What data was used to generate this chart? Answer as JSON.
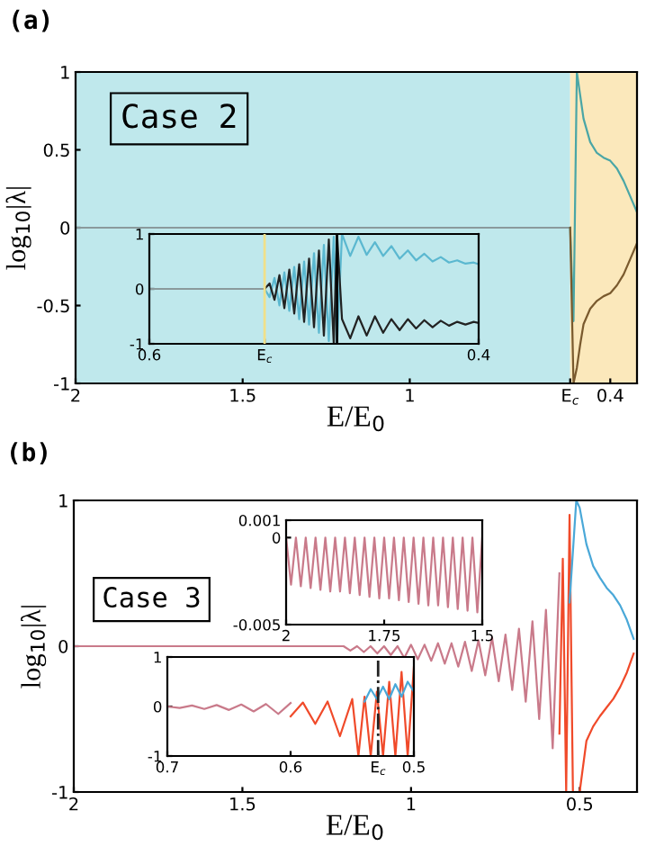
{
  "chart_data": [
    {
      "type": "line",
      "title": "(a)",
      "xlabel": "E/E$_{0}$",
      "ylabel": "log$_{10}$|λ|",
      "annotations": [
        "Case 2"
      ],
      "xlim": [
        2,
        0.32
      ],
      "ylim": [
        -1,
        1
      ],
      "xticks": [
        2,
        1.5,
        1,
        {
          "value": 0.52,
          "label": "E$_{c}$"
        },
        0.4
      ],
      "yticks": [
        -1,
        -0.5,
        0,
        0.5,
        1
      ],
      "bands": [
        {
          "axis": "x",
          "from": 2,
          "to": 0.52,
          "color": "#bfe8ec"
        },
        {
          "axis": "x",
          "from": 0.52,
          "to": 0.32,
          "color": "#fbe8bb"
        }
      ],
      "series": [
        {
          "color": "#8a9a9c",
          "x": [
            2,
            0.52
          ],
          "values": [
            0,
            0
          ]
        },
        {
          "color": "#4aa6a6",
          "x": [
            0.52,
            0.51,
            0.5,
            0.49,
            0.48,
            0.46,
            0.44,
            0.42,
            0.4,
            0.38,
            0.36,
            0.34,
            0.32
          ],
          "values": [
            0,
            -0.6,
            1,
            0.85,
            0.7,
            0.55,
            0.48,
            0.45,
            0.43,
            0.38,
            0.3,
            0.2,
            0.1
          ]
        },
        {
          "color": "#7a5a2e",
          "x": [
            0.52,
            0.51,
            0.5,
            0.49,
            0.48,
            0.46,
            0.44,
            0.42,
            0.4,
            0.38,
            0.36,
            0.34,
            0.32
          ],
          "values": [
            0,
            -1,
            -0.9,
            -0.75,
            -0.62,
            -0.52,
            -0.47,
            -0.44,
            -0.42,
            -0.37,
            -0.3,
            -0.2,
            -0.1
          ]
        }
      ]
    },
    {
      "type": "line",
      "xlim": [
        0.6,
        0.4
      ],
      "ylim": [
        -1,
        1
      ],
      "xticks": [
        0.6,
        {
          "value": 0.53,
          "label": "E$_{c}$"
        },
        0.4
      ],
      "yticks": [
        -1,
        0,
        1
      ],
      "bands": [
        {
          "axis": "x",
          "from": 0.6,
          "to": 0.4,
          "color": "#bfe8ec"
        }
      ],
      "ref_lines": [
        {
          "axis": "x",
          "value": 0.53,
          "color": "#f0e08a"
        },
        {
          "axis": "x",
          "value": 0.486,
          "color": "#000000"
        }
      ],
      "series": [
        {
          "color": "#8a9a9c",
          "x": [
            0.6,
            0.53
          ],
          "values": [
            0,
            0
          ]
        },
        {
          "color": "#5bb8d0",
          "x": [
            0.53,
            0.527,
            0.524,
            0.521,
            0.518,
            0.515,
            0.512,
            0.509,
            0.506,
            0.503,
            0.5,
            0.497,
            0.494,
            0.491,
            0.488,
            0.486,
            0.483,
            0.478,
            0.473,
            0.468,
            0.463,
            0.458,
            0.453,
            0.448,
            0.443,
            0.438,
            0.433,
            0.428,
            0.423,
            0.418,
            0.413,
            0.408,
            0.403,
            0.4
          ],
          "values": [
            0,
            -0.15,
            0.2,
            -0.3,
            0.3,
            -0.4,
            0.4,
            -0.55,
            0.5,
            -0.65,
            0.65,
            -0.8,
            0.8,
            -0.95,
            0.95,
            -1,
            1,
            0.6,
            0.95,
            0.62,
            0.85,
            0.6,
            0.78,
            0.55,
            0.7,
            0.52,
            0.64,
            0.5,
            0.58,
            0.48,
            0.52,
            0.46,
            0.48,
            0.45
          ]
        },
        {
          "color": "#222222",
          "x": [
            0.53,
            0.527,
            0.524,
            0.521,
            0.518,
            0.515,
            0.512,
            0.509,
            0.506,
            0.503,
            0.5,
            0.497,
            0.494,
            0.491,
            0.488,
            0.486,
            0.483,
            0.478,
            0.473,
            0.468,
            0.463,
            0.458,
            0.453,
            0.448,
            0.443,
            0.438,
            0.433,
            0.428,
            0.423,
            0.418,
            0.413,
            0.408,
            0.403,
            0.4
          ],
          "values": [
            0,
            0.1,
            -0.2,
            0.25,
            -0.35,
            0.35,
            -0.45,
            0.45,
            -0.6,
            0.55,
            -0.7,
            0.7,
            -0.85,
            0.9,
            -1,
            1,
            -0.55,
            -0.9,
            -0.5,
            -0.85,
            -0.5,
            -0.8,
            -0.55,
            -0.75,
            -0.55,
            -0.72,
            -0.57,
            -0.7,
            -0.58,
            -0.67,
            -0.6,
            -0.65,
            -0.6,
            -0.62
          ]
        }
      ]
    },
    {
      "type": "line",
      "title": "(b)",
      "xlabel": "E/E$_{0}$",
      "ylabel": "log$_{10}$|λ|",
      "annotations": [
        "Case 3"
      ],
      "xlim": [
        2,
        0.33
      ],
      "ylim": [
        -1,
        1
      ],
      "xticks": [
        2,
        1.5,
        1,
        0.5
      ],
      "yticks": [
        -1,
        0,
        1
      ],
      "series": [
        {
          "color": "#c97a8a",
          "x": [
            2,
            1.3,
            1.2,
            1.18,
            1.16,
            1.14,
            1.12,
            1.1,
            1.08,
            1.06,
            1.04,
            1.02,
            1.0,
            0.98,
            0.96,
            0.94,
            0.92,
            0.9,
            0.88,
            0.86,
            0.84,
            0.82,
            0.8,
            0.78,
            0.76,
            0.74,
            0.72,
            0.7,
            0.68,
            0.66,
            0.64,
            0.62,
            0.6,
            0.58,
            0.56
          ],
          "values": [
            0,
            0,
            0,
            -0.03,
            0,
            -0.04,
            0,
            -0.05,
            0,
            -0.06,
            0,
            -0.08,
            0.01,
            -0.09,
            0.01,
            -0.1,
            0.02,
            -0.12,
            0.02,
            -0.14,
            0.03,
            -0.17,
            0.04,
            -0.2,
            0.06,
            -0.24,
            0.08,
            -0.3,
            0.12,
            -0.38,
            0.17,
            -0.5,
            0.25,
            -0.7,
            0.5
          ]
        },
        {
          "color": "#f04a2a",
          "x": [
            0.56,
            0.55,
            0.54,
            0.53,
            0.52,
            0.5,
            0.48,
            0.46,
            0.44,
            0.42,
            0.4,
            0.38,
            0.36,
            0.34
          ],
          "values": [
            -0.6,
            0.6,
            -1,
            0.9,
            -1,
            -1,
            -0.65,
            -0.55,
            -0.48,
            -0.42,
            -0.36,
            -0.28,
            -0.18,
            -0.05
          ]
        },
        {
          "color": "#4aa8d8",
          "x": [
            0.53,
            0.51,
            0.5,
            0.48,
            0.46,
            0.44,
            0.42,
            0.4,
            0.38,
            0.36,
            0.34
          ],
          "values": [
            0.3,
            1,
            0.95,
            0.7,
            0.55,
            0.47,
            0.4,
            0.35,
            0.28,
            0.18,
            0.05
          ]
        }
      ]
    },
    {
      "type": "line",
      "xlim": [
        2,
        1.5
      ],
      "ylim": [
        -0.005,
        0.001
      ],
      "xticks": [
        2,
        1.75,
        1.5
      ],
      "yticks": [
        -0.005,
        0,
        0.001
      ],
      "series": [
        {
          "color": "#c97a8a",
          "x": [
            2,
            1.9875,
            1.975,
            1.9625,
            1.95,
            1.9375,
            1.925,
            1.9125,
            1.9,
            1.8875,
            1.875,
            1.8625,
            1.85,
            1.8375,
            1.825,
            1.8125,
            1.8,
            1.7875,
            1.775,
            1.7625,
            1.75,
            1.7375,
            1.725,
            1.7125,
            1.7,
            1.6875,
            1.675,
            1.6625,
            1.65,
            1.6375,
            1.625,
            1.6125,
            1.6,
            1.5875,
            1.575,
            1.5625,
            1.55,
            1.5375,
            1.525,
            1.5125,
            1.5
          ],
          "values": [
            0,
            -0.0027,
            0,
            -0.0028,
            0,
            -0.0029,
            0,
            -0.003,
            0,
            -0.0031,
            0,
            -0.0031,
            0,
            -0.0032,
            0,
            -0.0033,
            0,
            -0.0034,
            0,
            -0.0035,
            0,
            -0.0035,
            0,
            -0.0036,
            0,
            -0.0037,
            0,
            -0.0038,
            0,
            -0.0039,
            0,
            -0.0039,
            0,
            -0.004,
            0,
            -0.0041,
            0,
            -0.0042,
            0,
            -0.0043,
            0
          ]
        }
      ]
    },
    {
      "type": "line",
      "xlim": [
        0.7,
        0.5
      ],
      "ylim": [
        -1,
        1
      ],
      "xticks": [
        0.7,
        0.6,
        {
          "value": 0.529,
          "label": "E$_{c}$"
        },
        0.5
      ],
      "yticks": [
        -1,
        0,
        1
      ],
      "ref_lines": [
        {
          "axis": "x",
          "value": 0.529,
          "color": "#222222",
          "line_style": "dashed"
        }
      ],
      "series": [
        {
          "color": "#c97a8a",
          "x": [
            0.7,
            0.69,
            0.68,
            0.67,
            0.66,
            0.65,
            0.64,
            0.63,
            0.62,
            0.61,
            0.6
          ],
          "values": [
            0,
            -0.03,
            0.02,
            -0.05,
            0.03,
            -0.07,
            0.04,
            -0.1,
            0.05,
            -0.15,
            0.07
          ]
        },
        {
          "color": "#f04a2a",
          "x": [
            0.6,
            0.59,
            0.58,
            0.57,
            0.56,
            0.55,
            0.545,
            0.54,
            0.535,
            0.53,
            0.525,
            0.52,
            0.515,
            0.51,
            0.505,
            0.5
          ],
          "values": [
            -0.2,
            0.08,
            -0.35,
            0.1,
            -0.6,
            0.15,
            -1,
            0.2,
            -1,
            0.3,
            -1,
            0.5,
            -1,
            0.7,
            -1,
            0.8
          ]
        },
        {
          "color": "#4aa8d8",
          "x": [
            0.54,
            0.535,
            0.53,
            0.525,
            0.52,
            0.515,
            0.51,
            0.505,
            0.5
          ],
          "values": [
            0.1,
            0.35,
            0.15,
            0.4,
            0.15,
            0.45,
            0.2,
            0.5,
            0.3
          ]
        }
      ]
    }
  ]
}
